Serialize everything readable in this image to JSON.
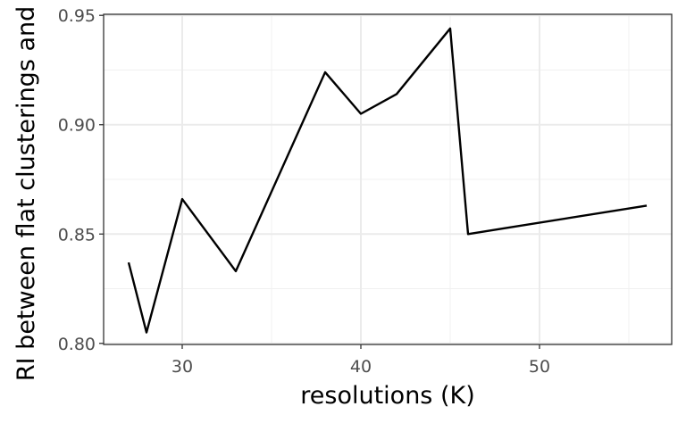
{
  "chart_data": {
    "type": "line",
    "xlabel": "resolutions (K)",
    "ylabel": "RI between flat clusterings and M",
    "xlim": [
      25.6,
      57.4
    ],
    "ylim": [
      0.7995,
      0.9505
    ],
    "x_ticks": [
      {
        "value": 30,
        "label": "30"
      },
      {
        "value": 40,
        "label": "40"
      },
      {
        "value": 50,
        "label": "50"
      }
    ],
    "y_ticks": [
      {
        "value": 0.8,
        "label": "0.80"
      },
      {
        "value": 0.85,
        "label": "0.85"
      },
      {
        "value": 0.9,
        "label": "0.90"
      },
      {
        "value": 0.95,
        "label": "0.95"
      }
    ],
    "x_minor_gridlines": [
      35,
      45,
      55
    ],
    "y_minor_gridlines": [
      0.825,
      0.875,
      0.925
    ],
    "grid": true,
    "line_color": "#000000",
    "series": [
      {
        "x": [
          27,
          28,
          30,
          33,
          38,
          40,
          42,
          45,
          46,
          56
        ],
        "y": [
          0.837,
          0.805,
          0.866,
          0.833,
          0.924,
          0.905,
          0.914,
          0.944,
          0.85,
          0.863
        ]
      }
    ]
  }
}
